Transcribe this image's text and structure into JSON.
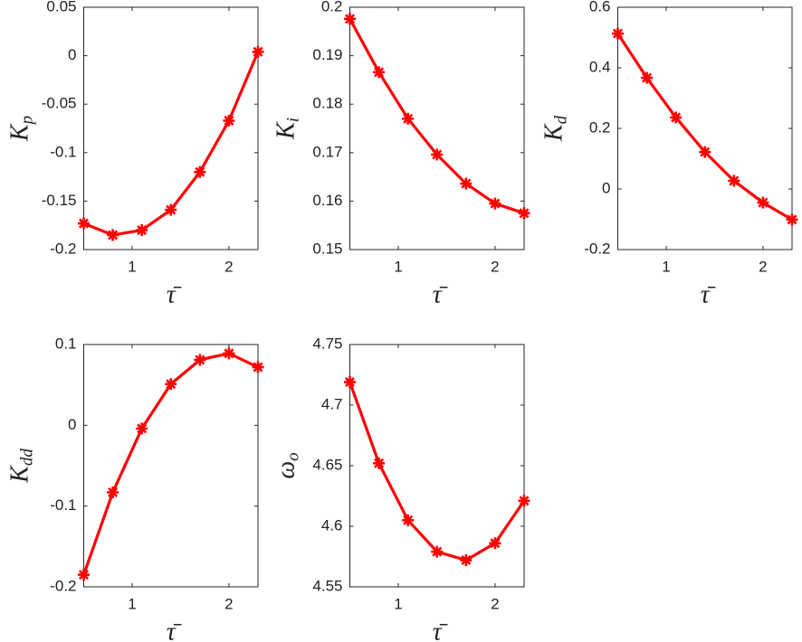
{
  "chart_data": [
    {
      "type": "line",
      "x": [
        0.5,
        0.8,
        1.1,
        1.4,
        1.7,
        2.0,
        2.3
      ],
      "values": [
        -0.173,
        -0.185,
        -0.18,
        -0.159,
        -0.12,
        -0.067,
        0.004
      ],
      "color": "#ff0000",
      "xlim": [
        0.5,
        2.3
      ],
      "xticks": [
        1,
        2
      ],
      "ylim": [
        -0.2,
        0.05
      ],
      "yticks": [
        -0.2,
        -0.15,
        -0.1,
        -0.05,
        0,
        0.05
      ],
      "ylabel": {
        "text": "K",
        "subscript": "p"
      },
      "xlabel": "τ̄"
    },
    {
      "type": "line",
      "x": [
        0.5,
        0.8,
        1.1,
        1.4,
        1.7,
        2.0,
        2.3
      ],
      "values": [
        0.1976,
        0.1866,
        0.177,
        0.1696,
        0.1636,
        0.1595,
        0.1575
      ],
      "color": "#ff0000",
      "xlim": [
        0.5,
        2.3
      ],
      "xticks": [
        1,
        2
      ],
      "ylim": [
        0.15,
        0.2
      ],
      "yticks": [
        0.15,
        0.16,
        0.17,
        0.18,
        0.19,
        0.2
      ],
      "ylabel": {
        "text": "K",
        "subscript": "i"
      },
      "xlabel": "τ̄"
    },
    {
      "type": "line",
      "x": [
        0.5,
        0.8,
        1.1,
        1.4,
        1.7,
        2.0,
        2.3
      ],
      "values": [
        0.513,
        0.367,
        0.236,
        0.122,
        0.027,
        -0.045,
        -0.101
      ],
      "color": "#ff0000",
      "xlim": [
        0.5,
        2.3
      ],
      "xticks": [
        1,
        2
      ],
      "ylim": [
        -0.2,
        0.6
      ],
      "yticks": [
        -0.2,
        0,
        0.2,
        0.4,
        0.6
      ],
      "ylabel": {
        "text": "K",
        "subscript": "d"
      },
      "xlabel": "τ̄"
    },
    {
      "type": "line",
      "x": [
        0.5,
        0.8,
        1.1,
        1.4,
        1.7,
        2.0,
        2.3
      ],
      "values": [
        -0.185,
        -0.083,
        -0.004,
        0.051,
        0.081,
        0.089,
        0.072
      ],
      "color": "#ff0000",
      "xlim": [
        0.5,
        2.3
      ],
      "xticks": [
        1,
        2
      ],
      "ylim": [
        -0.2,
        0.1
      ],
      "yticks": [
        -0.2,
        -0.1,
        0,
        0.1
      ],
      "ylabel": {
        "text": "K",
        "subscript": "dd"
      },
      "xlabel": "τ̄"
    },
    {
      "type": "line",
      "x": [
        0.5,
        0.8,
        1.1,
        1.4,
        1.7,
        2.0,
        2.3
      ],
      "values": [
        4.719,
        4.652,
        4.605,
        4.579,
        4.572,
        4.586,
        4.621
      ],
      "color": "#ff0000",
      "xlim": [
        0.5,
        2.3
      ],
      "xticks": [
        1,
        2
      ],
      "ylim": [
        4.55,
        4.75
      ],
      "yticks": [
        4.55,
        4.6,
        4.65,
        4.7,
        4.75
      ],
      "ylabel": {
        "text": "ω",
        "subscript": "o"
      },
      "xlabel": "τ̄"
    }
  ]
}
